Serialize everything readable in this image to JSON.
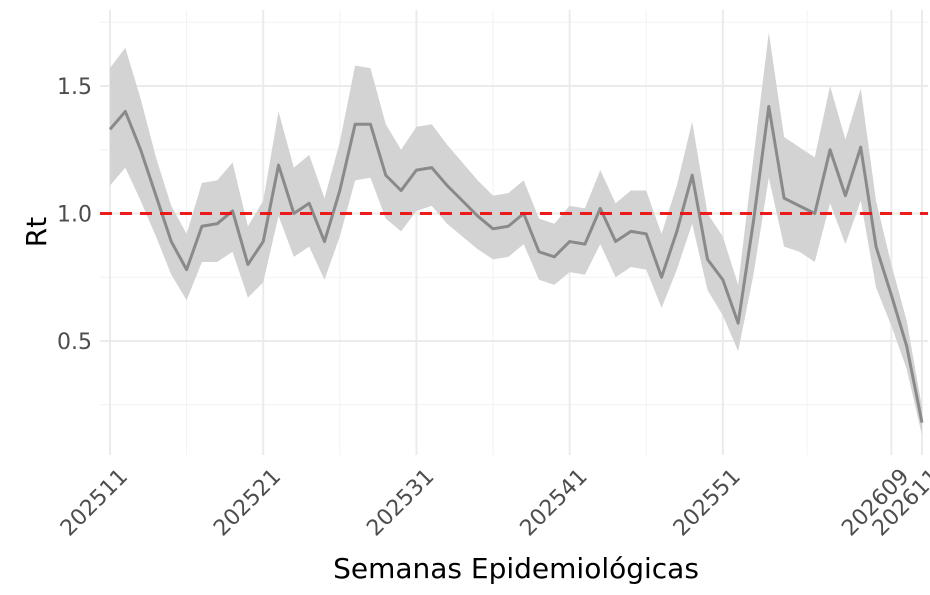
{
  "chart_data": {
    "type": "line",
    "x_label": "Semanas Epidemiológicas",
    "y_label": "Rt",
    "categories": [
      "202511",
      null,
      null,
      null,
      null,
      null,
      null,
      null,
      null,
      null,
      "202521",
      null,
      null,
      null,
      null,
      null,
      null,
      null,
      null,
      null,
      "202531",
      null,
      null,
      null,
      null,
      null,
      null,
      null,
      null,
      null,
      "202541",
      null,
      null,
      null,
      null,
      null,
      null,
      null,
      null,
      null,
      "202551",
      null,
      null,
      null,
      null,
      null,
      null,
      null,
      null,
      null,
      null,
      "202609",
      null,
      "202611"
    ],
    "series": [
      {
        "color": "#8a8a8a",
        "band_color": "#d3d3d3",
        "values": [
          1.33,
          1.4,
          1.25,
          1.07,
          0.89,
          0.78,
          0.95,
          0.96,
          1.01,
          0.8,
          0.89,
          1.19,
          1.0,
          1.04,
          0.89,
          1.09,
          1.35,
          1.35,
          1.15,
          1.09,
          1.17,
          1.18,
          1.11,
          1.05,
          0.99,
          0.94,
          0.95,
          1.0,
          0.85,
          0.83,
          0.89,
          0.88,
          1.02,
          0.89,
          0.93,
          0.92,
          0.75,
          0.93,
          1.15,
          0.82,
          0.74,
          0.57,
          0.97,
          1.42,
          1.06,
          1.03,
          1.0,
          1.25,
          1.07,
          1.26,
          0.87,
          0.68,
          0.48,
          0.18
        ],
        "lower": [
          1.11,
          1.18,
          1.05,
          0.91,
          0.76,
          0.66,
          0.81,
          0.81,
          0.85,
          0.67,
          0.73,
          0.99,
          0.83,
          0.87,
          0.74,
          0.91,
          1.13,
          1.14,
          0.98,
          0.93,
          1.01,
          1.03,
          0.96,
          0.91,
          0.86,
          0.82,
          0.83,
          0.88,
          0.74,
          0.72,
          0.77,
          0.76,
          0.88,
          0.75,
          0.79,
          0.78,
          0.63,
          0.78,
          0.96,
          0.7,
          0.6,
          0.46,
          0.76,
          1.14,
          0.87,
          0.85,
          0.81,
          1.04,
          0.88,
          1.05,
          0.71,
          0.56,
          0.39,
          0.13
        ],
        "upper": [
          1.57,
          1.65,
          1.45,
          1.22,
          1.03,
          0.92,
          1.12,
          1.13,
          1.2,
          0.95,
          1.05,
          1.4,
          1.18,
          1.23,
          1.06,
          1.28,
          1.58,
          1.57,
          1.35,
          1.25,
          1.34,
          1.35,
          1.27,
          1.2,
          1.13,
          1.07,
          1.08,
          1.13,
          0.98,
          0.96,
          1.03,
          1.02,
          1.17,
          1.04,
          1.09,
          1.09,
          0.92,
          1.11,
          1.36,
          1.0,
          0.91,
          0.72,
          1.22,
          1.71,
          1.3,
          1.26,
          1.22,
          1.5,
          1.29,
          1.49,
          1.05,
          0.8,
          0.58,
          0.24
        ]
      }
    ],
    "hline": {
      "value": 1,
      "color": "#ee1111"
    },
    "ylim": [
      0.053,
      1.798
    ],
    "yticks": [
      0.5,
      {
        "value": 1,
        "label": "1.0"
      },
      1.5
    ],
    "grid": true
  }
}
